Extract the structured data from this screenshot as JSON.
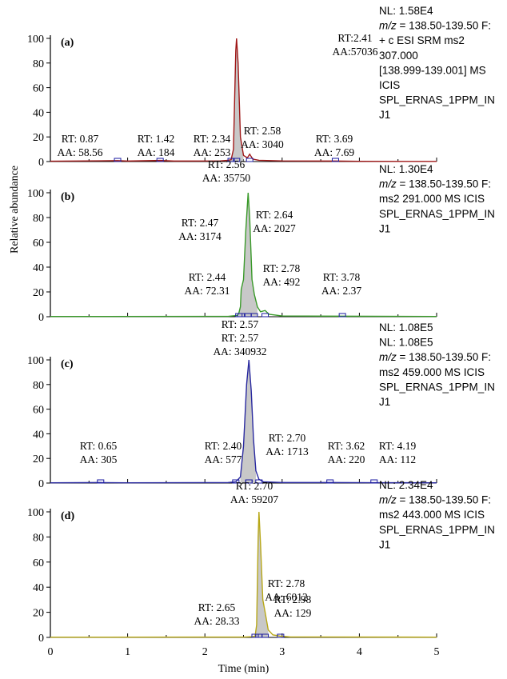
{
  "chart_data": {
    "type": "line",
    "xlabel": "Time (min)",
    "ylabel": "Relative abundance",
    "xlim": [
      0,
      5
    ],
    "x_ticks": [
      "0",
      "1",
      "2",
      "3",
      "4",
      "5"
    ],
    "y_ticks": [
      "0",
      "20",
      "40",
      "60",
      "80",
      "100"
    ],
    "ylim": [
      0,
      100
    ],
    "panels": [
      {
        "label": "(a)",
        "color": "#a01818",
        "peak_fill": "#c8c8c8",
        "info": [
          {
            "pre": "",
            "it": "",
            "post": "NL: 1.58E4"
          },
          {
            "pre": "",
            "it": "m/z",
            "post": " = 138.50-139.50 F:"
          },
          {
            "pre": "",
            "it": "",
            "post": "+ c ESI SRM ms2"
          },
          {
            "pre": "",
            "it": "",
            "post": "307.000"
          },
          {
            "pre": "",
            "it": "",
            "post": "[138.999-139.001] MS"
          },
          {
            "pre": "",
            "it": "",
            "post": "ICIS"
          },
          {
            "pre": "",
            "it": "",
            "post": "SPL_ERNAS_1PPM_IN"
          },
          {
            "pre": "",
            "it": "",
            "post": "J1"
          }
        ],
        "peaks": [
          {
            "rt": "RT:2.41",
            "aa": "AA:57036",
            "x": 2.41,
            "y": 100
          },
          {
            "rt": "RT: 0.87",
            "aa": "AA: 58.56",
            "x": 0.87,
            "y": 0.5
          },
          {
            "rt": "RT: 1.42",
            "aa": "AA: 184",
            "x": 1.42,
            "y": 0.6
          },
          {
            "rt": "RT: 2.34",
            "aa": "AA: 253",
            "x": 2.34,
            "y": 1
          },
          {
            "rt": "RT: 2.58",
            "aa": "AA: 3040",
            "x": 2.58,
            "y": 6
          },
          {
            "rt": "RT: 3.69",
            "aa": "AA: 7.69",
            "x": 3.69,
            "y": 0.2
          }
        ],
        "trace": [
          [
            0,
            0.3
          ],
          [
            0.5,
            0.5
          ],
          [
            0.87,
            0.8
          ],
          [
            1.0,
            0.4
          ],
          [
            1.42,
            0.9
          ],
          [
            1.6,
            0.4
          ],
          [
            2.2,
            0.5
          ],
          [
            2.3,
            1
          ],
          [
            2.34,
            1.5
          ],
          [
            2.37,
            10
          ],
          [
            2.4,
            90
          ],
          [
            2.41,
            100
          ],
          [
            2.43,
            80
          ],
          [
            2.46,
            20
          ],
          [
            2.5,
            5
          ],
          [
            2.55,
            3
          ],
          [
            2.58,
            6
          ],
          [
            2.62,
            2
          ],
          [
            2.7,
            1
          ],
          [
            3.0,
            0.5
          ],
          [
            3.69,
            0.4
          ],
          [
            4.0,
            0.2
          ],
          [
            5.0,
            0.1
          ]
        ]
      },
      {
        "label": "(b)",
        "color": "#3a9a2a",
        "peak_fill": "#c8c8c8",
        "info": [
          {
            "pre": "",
            "it": "",
            "post": "NL: 1.30E4"
          },
          {
            "pre": "",
            "it": "m/z",
            "post": " = 138.50-139.50 F:"
          },
          {
            "pre": "",
            "it": "",
            "post": "ms2 291.000 MS ICIS"
          },
          {
            "pre": "",
            "it": "",
            "post": "SPL_ERNAS_1PPM_IN"
          },
          {
            "pre": "",
            "it": "",
            "post": "J1"
          }
        ],
        "peaks": [
          {
            "rt": "RT: 2.56",
            "aa": "AA: 35750",
            "x": 2.56,
            "y": 100
          },
          {
            "rt": "RT: 2.47",
            "aa": "AA: 3174",
            "x": 2.47,
            "y": 22
          },
          {
            "rt": "RT: 2.64",
            "aa": "AA: 2027",
            "x": 2.64,
            "y": 18
          },
          {
            "rt": "RT: 2.44",
            "aa": "AA: 72.31",
            "x": 2.44,
            "y": 3
          },
          {
            "rt": "RT: 2.78",
            "aa": "AA: 492",
            "x": 2.78,
            "y": 5
          },
          {
            "rt": "RT: 3.78",
            "aa": "AA: 2.37",
            "x": 3.78,
            "y": 0.3
          }
        ],
        "trace": [
          [
            0,
            0.2
          ],
          [
            2.3,
            0.3
          ],
          [
            2.42,
            1
          ],
          [
            2.44,
            3
          ],
          [
            2.46,
            8
          ],
          [
            2.47,
            22
          ],
          [
            2.5,
            30
          ],
          [
            2.53,
            70
          ],
          [
            2.56,
            100
          ],
          [
            2.58,
            80
          ],
          [
            2.61,
            30
          ],
          [
            2.64,
            18
          ],
          [
            2.68,
            8
          ],
          [
            2.72,
            4
          ],
          [
            2.78,
            5
          ],
          [
            2.83,
            2
          ],
          [
            3.0,
            0.6
          ],
          [
            3.78,
            0.4
          ],
          [
            5.0,
            0.2
          ]
        ]
      },
      {
        "label": "(c)",
        "color": "#2a2aa0",
        "peak_fill": "#c8c8c8",
        "info": [
          {
            "pre": "",
            "it": "",
            "post": "NL: 1.08E5"
          },
          {
            "pre": "",
            "it": "",
            "post": "NL: 1.08E5"
          },
          {
            "pre": "",
            "it": "m/z",
            "post": " = 138.50-139.50 F:"
          },
          {
            "pre": "",
            "it": "",
            "post": "ms2 459.000 MS ICIS"
          },
          {
            "pre": "",
            "it": "",
            "post": "SPL_ERNAS_1PPM_IN"
          },
          {
            "pre": "",
            "it": "",
            "post": "J1"
          }
        ],
        "peaks": [
          {
            "rt": "RT: 2.57",
            "aa": "",
            "x": 2.57,
            "y": 100
          },
          {
            "rt": "RT: 2.57",
            "aa": "AA: 340932",
            "x": 2.57,
            "y": 100
          },
          {
            "rt": "RT: 0.65",
            "aa": "AA: 305",
            "x": 0.65,
            "y": 0.3
          },
          {
            "rt": "RT: 2.40",
            "aa": "AA: 577",
            "x": 2.4,
            "y": 1
          },
          {
            "rt": "RT: 2.70",
            "aa": "AA: 1713",
            "x": 2.7,
            "y": 3
          },
          {
            "rt": "RT: 3.62",
            "aa": "AA: 220",
            "x": 3.62,
            "y": 0.4
          },
          {
            "rt": "RT: 4.19",
            "aa": "AA: 112",
            "x": 4.19,
            "y": 0.3
          }
        ],
        "trace": [
          [
            0,
            0.2
          ],
          [
            0.65,
            0.4
          ],
          [
            1.0,
            0.2
          ],
          [
            2.3,
            0.4
          ],
          [
            2.4,
            1
          ],
          [
            2.46,
            5
          ],
          [
            2.5,
            30
          ],
          [
            2.54,
            80
          ],
          [
            2.57,
            100
          ],
          [
            2.6,
            75
          ],
          [
            2.63,
            35
          ],
          [
            2.66,
            10
          ],
          [
            2.7,
            3
          ],
          [
            2.76,
            1
          ],
          [
            3.0,
            0.4
          ],
          [
            3.62,
            0.4
          ],
          [
            4.19,
            0.3
          ],
          [
            5.0,
            0.2
          ]
        ]
      },
      {
        "label": "(d)",
        "color": "#b8a818",
        "peak_fill": "#c8c8c8",
        "info": [
          {
            "pre": "",
            "it": "",
            "post": "NL: 2.34E4"
          },
          {
            "pre": "",
            "it": "m/z",
            "post": " = 138.50-139.50 F:"
          },
          {
            "pre": "",
            "it": "",
            "post": "ms2 443.000 MS ICIS"
          },
          {
            "pre": "",
            "it": "",
            "post": "SPL_ERNAS_1PPM_IN"
          },
          {
            "pre": "",
            "it": "",
            "post": "J1"
          }
        ],
        "peaks": [
          {
            "rt": "RT: 2.70",
            "aa": "AA: 59207",
            "x": 2.7,
            "y": 100
          },
          {
            "rt": "RT: 2.78",
            "aa": "AA: 6012",
            "x": 2.78,
            "y": 20
          },
          {
            "rt": "RT: 2.65",
            "aa": "AA: 28.33",
            "x": 2.65,
            "y": 1
          },
          {
            "rt": "RT: 2.98",
            "aa": "AA: 129",
            "x": 2.98,
            "y": 1
          }
        ],
        "trace": [
          [
            0,
            0.2
          ],
          [
            2.5,
            0.3
          ],
          [
            2.62,
            0.6
          ],
          [
            2.65,
            1
          ],
          [
            2.67,
            10
          ],
          [
            2.69,
            80
          ],
          [
            2.7,
            100
          ],
          [
            2.72,
            75
          ],
          [
            2.75,
            30
          ],
          [
            2.78,
            20
          ],
          [
            2.82,
            6
          ],
          [
            2.88,
            2
          ],
          [
            2.98,
            1
          ],
          [
            3.1,
            0.4
          ],
          [
            5.0,
            0.2
          ]
        ]
      }
    ]
  }
}
